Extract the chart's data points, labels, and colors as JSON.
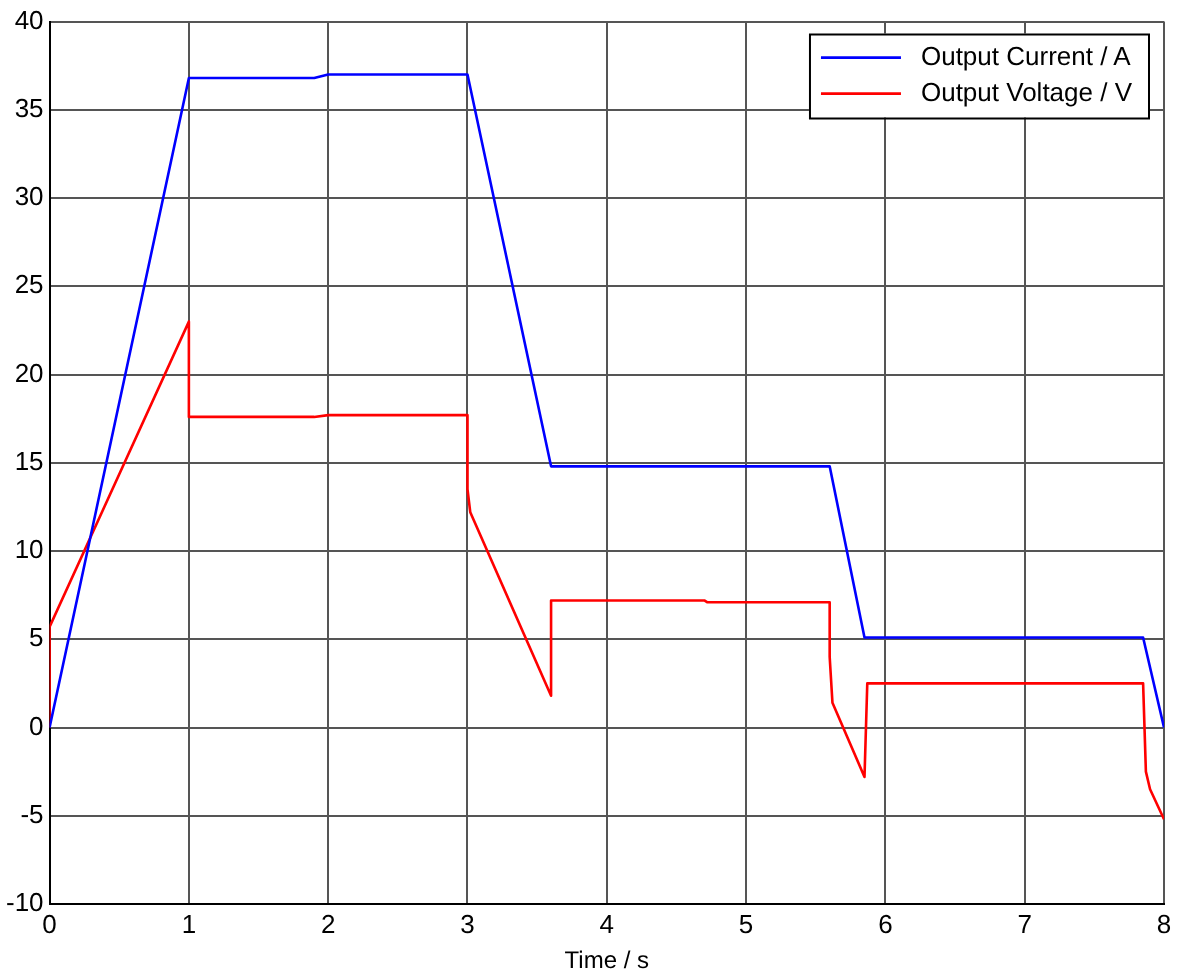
{
  "chart_data": {
    "type": "line",
    "xlabel": "Time / s",
    "xlim": [
      0,
      8
    ],
    "xticks": [
      0,
      1,
      2,
      3,
      4,
      5,
      6,
      7,
      8
    ],
    "ylim": [
      -10,
      40
    ],
    "yticks": [
      -10,
      -5,
      0,
      5,
      10,
      15,
      20,
      25,
      30,
      35,
      40
    ],
    "grid": true,
    "legend": "top right",
    "marker": "none",
    "line_style": "solid",
    "series": [
      {
        "name": "Output Current / A",
        "color": "#0000ff",
        "x": [
          0,
          1,
          1.9,
          2,
          3,
          3.6,
          5.6,
          5.85,
          7.85,
          8
        ],
        "values": [
          0,
          36.8,
          36.8,
          37,
          37,
          14.8,
          14.8,
          5.1,
          5.1,
          0
        ]
      },
      {
        "name": "Output Voltage / V",
        "color": "#ff0000",
        "x": [
          0,
          0,
          1,
          1,
          1.9,
          2,
          3,
          3,
          3.02,
          3.6,
          3.6,
          4.7,
          4.72,
          5.6,
          5.6,
          5.62,
          5.85,
          5.87,
          7.85,
          7.87,
          7.9,
          8
        ],
        "values": [
          0,
          5.7,
          23,
          17.6,
          17.6,
          17.7,
          17.7,
          13.5,
          12.2,
          1.8,
          7.2,
          7.2,
          7.1,
          7.1,
          4,
          1.4,
          -2.8,
          2.5,
          2.5,
          -2.5,
          -3.5,
          -5.2
        ]
      }
    ]
  }
}
